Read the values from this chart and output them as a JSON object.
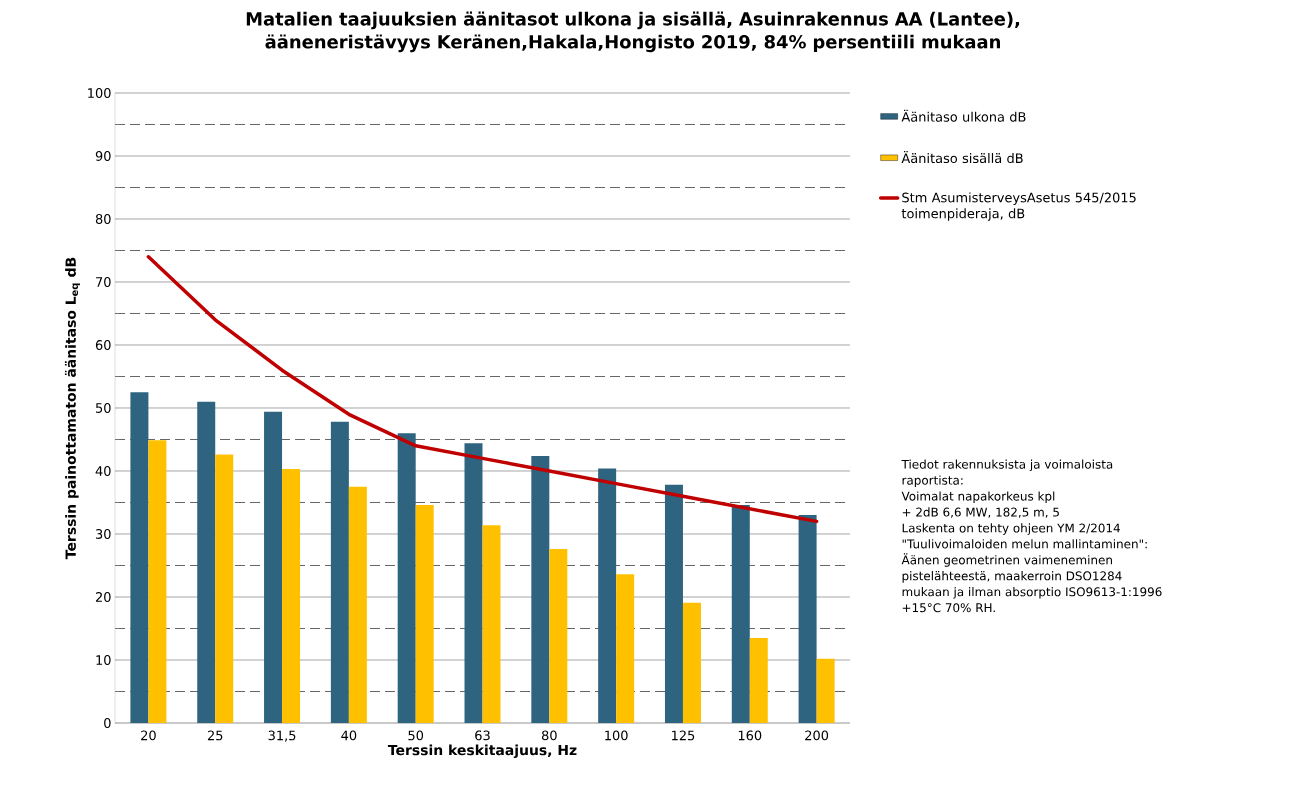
{
  "chart_data": {
    "type": "bar",
    "title": "Matalien taajuuksien äänitasot ulkona ja sisällä, Asuinrakennus AA (Lantee), ääneneristävyys Keränen,Hakala,Hongisto 2019, 84% persentiili mukaan",
    "xlabel": "Terssin keskitaajuus, Hz",
    "ylabel": "Terssin painottamaton äänitaso L$_{eq}$ dB",
    "categories": [
      "20",
      "25",
      "31,5",
      "40",
      "50",
      "63",
      "80",
      "100",
      "125",
      "160",
      "200"
    ],
    "series": [
      {
        "name": "Äänitaso ulkona dB",
        "color": "#2e6480",
        "values": [
          52.5,
          51.0,
          49.4,
          47.8,
          46.0,
          44.4,
          42.4,
          40.4,
          37.8,
          34.6,
          33.0
        ]
      },
      {
        "name": "Äänitaso sisällä dB",
        "color": "#ffc000",
        "values": [
          44.9,
          42.6,
          40.3,
          37.5,
          34.6,
          31.4,
          27.6,
          23.6,
          19.1,
          13.5,
          10.2
        ]
      },
      {
        "name": "Stm AsumisterveysAsetus 545/2015 toimenpideraja, dB",
        "color": "#c00000",
        "type": "line",
        "values": [
          74,
          64,
          56,
          49,
          44,
          42,
          40,
          38,
          36,
          34,
          32
        ]
      }
    ],
    "ylim": [
      0,
      100
    ],
    "yticks": [
      0,
      {
        "value": 5,
        "label": null
      },
      10,
      {
        "value": 15,
        "label": null
      },
      20,
      {
        "value": 25,
        "label": null
      },
      30,
      {
        "value": 35,
        "label": null
      },
      40,
      {
        "value": 45,
        "label": null
      },
      50,
      {
        "value": 55,
        "label": null
      },
      60,
      {
        "value": 65,
        "label": null
      },
      70,
      {
        "value": 75,
        "label": null
      },
      80,
      {
        "value": 85,
        "label": null
      },
      90,
      {
        "value": 95,
        "label": null
      },
      100
    ],
    "grid": "y",
    "legend": "right",
    "marker": "none",
    "line_style": "solid",
    "annotations": [
      "Tiedot rakennuksista ja voimaloista",
      "raportista:",
      "Voimalat napakorkeus kpl",
      "+ 2dB 6,6 MW, 182,5 m, 5",
      "Laskenta on tehty ohjeen YM 2/2014",
      "\"Tuulivoimaloiden melun mallintaminen\":",
      "Äänen geometrinen vaimeneminen",
      "pistelähteestä, maakerroin DSO1284",
      "mukaan ja ilman absorptio ISO9613-1:1996",
      "+15°C 70% RH."
    ]
  }
}
